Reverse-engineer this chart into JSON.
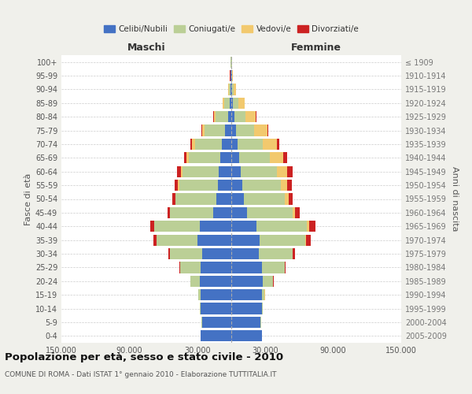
{
  "age_groups": [
    "0-4",
    "5-9",
    "10-14",
    "15-19",
    "20-24",
    "25-29",
    "30-34",
    "35-39",
    "40-44",
    "45-49",
    "50-54",
    "55-59",
    "60-64",
    "65-69",
    "70-74",
    "75-79",
    "80-84",
    "85-89",
    "90-94",
    "95-99",
    "100+"
  ],
  "birth_years": [
    "2005-2009",
    "2000-2004",
    "1995-1999",
    "1990-1994",
    "1985-1989",
    "1980-1984",
    "1975-1979",
    "1970-1974",
    "1965-1969",
    "1960-1964",
    "1955-1959",
    "1950-1954",
    "1945-1949",
    "1940-1944",
    "1935-1939",
    "1930-1934",
    "1925-1929",
    "1920-1924",
    "1915-1919",
    "1910-1914",
    "≤ 1909"
  ],
  "males": {
    "celibe": [
      27000,
      26000,
      27000,
      27000,
      28000,
      27000,
      26000,
      30000,
      28000,
      16000,
      13000,
      12000,
      11000,
      9500,
      8000,
      5500,
      3000,
      1500,
      700,
      400,
      200
    ],
    "coniugato": [
      50,
      100,
      500,
      2000,
      8000,
      18000,
      28000,
      36000,
      40000,
      38000,
      36000,
      34000,
      32000,
      28000,
      24000,
      18000,
      11000,
      5000,
      1500,
      500,
      200
    ],
    "vedovo": [
      1,
      1,
      2,
      5,
      10,
      20,
      50,
      100,
      150,
      300,
      600,
      1000,
      1500,
      2000,
      2500,
      2000,
      1500,
      800,
      300,
      100,
      50
    ],
    "divorziato": [
      2,
      5,
      10,
      50,
      200,
      500,
      1200,
      2500,
      3500,
      2000,
      2500,
      3000,
      3500,
      2500,
      1500,
      800,
      300,
      200,
      100,
      50,
      20
    ]
  },
  "females": {
    "nubile": [
      27000,
      26000,
      27000,
      27000,
      28000,
      27000,
      24000,
      25000,
      22000,
      14000,
      11000,
      9500,
      8500,
      7000,
      5500,
      4000,
      2500,
      1500,
      700,
      400,
      200
    ],
    "coniugata": [
      50,
      150,
      600,
      2500,
      9000,
      20000,
      30000,
      40000,
      45000,
      40000,
      36000,
      34000,
      32000,
      27000,
      22000,
      16000,
      10000,
      5000,
      1500,
      500,
      200
    ],
    "vedova": [
      2,
      3,
      8,
      20,
      60,
      150,
      400,
      800,
      1500,
      2500,
      4000,
      6000,
      9000,
      12000,
      13000,
      12000,
      9000,
      5000,
      2000,
      600,
      200
    ],
    "divorziata": [
      3,
      8,
      20,
      80,
      300,
      800,
      2000,
      4000,
      6000,
      4000,
      3500,
      4000,
      4500,
      3000,
      1800,
      800,
      400,
      200,
      100,
      50,
      20
    ]
  },
  "colors": {
    "celibe_nubile": "#4472C4",
    "coniugato_a": "#BBCF96",
    "vedovo_a": "#F2C96E",
    "divorziato_a": "#CC2222"
  },
  "title": "Popolazione per età, sesso e stato civile - 2010",
  "subtitle": "COMUNE DI ROMA - Dati ISTAT 1° gennaio 2010 - Elaborazione TUTTITALIA.IT",
  "xlabel_left": "Maschi",
  "xlabel_right": "Femmine",
  "ylabel_left": "Fasce di età",
  "ylabel_right": "Anni di nascita",
  "xlim": 150000,
  "xtick_positions": [
    -150000,
    -90000,
    -30000,
    30000,
    90000,
    150000
  ],
  "xtick_labels": [
    "150.000",
    "90.000",
    "30.000",
    "30.000",
    "90.000",
    "150.000"
  ],
  "bg_color": "#F0F0EB",
  "plot_bg_color": "#FFFFFF"
}
